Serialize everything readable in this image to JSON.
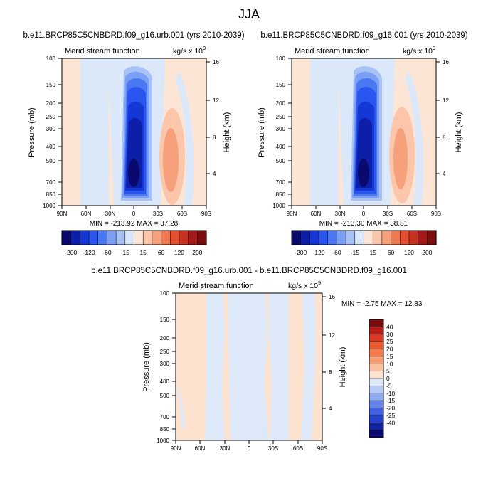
{
  "figure_title": "JJA",
  "chart_data": [
    {
      "type": "heatmap",
      "title": "b.e11.BRCP85C5CNBDRD.f09_g16.urb.001 (yrs 2010-2039)",
      "subtitle_left": "Merid stream function",
      "units": "kg/s x 10",
      "units_exp": "9",
      "ylabel": "Pressure (mb)",
      "ylabel_right": "Height (km)",
      "x_ticks": [
        "90N",
        "60N",
        "30N",
        "0",
        "30S",
        "60S",
        "90S"
      ],
      "y_ticks": [
        "100",
        "150",
        "200",
        "250",
        "300",
        "400",
        "500",
        "700",
        "850",
        "1000"
      ],
      "y_ticks_right": [
        "16",
        "12",
        "8",
        "4"
      ],
      "min_max_text": "MIN = -213.92   MAX = 37.28",
      "min": -213.92,
      "max": 37.28
    },
    {
      "type": "heatmap",
      "title": "b.e11.BRCP85C5CNBDRD.f09_g16.001 (yrs 2010-2039)",
      "subtitle_left": "Merid stream function",
      "units": "kg/s x 10",
      "units_exp": "9",
      "ylabel": "Pressure (mb)",
      "ylabel_right": "Height (km)",
      "x_ticks": [
        "90N",
        "60N",
        "30N",
        "0",
        "30S",
        "60S",
        "90S"
      ],
      "y_ticks": [
        "100",
        "150",
        "200",
        "250",
        "300",
        "400",
        "500",
        "700",
        "850",
        "1000"
      ],
      "y_ticks_right": [
        "16",
        "12",
        "8",
        "4"
      ],
      "min_max_text": "MIN = -213.30   MAX = 38.81",
      "min": -213.3,
      "max": 38.81
    },
    {
      "type": "heatmap",
      "title": "b.e11.BRCP85C5CNBDRD.f09_g16.urb.001 - b.e11.BRCP85C5CNBDRD.f09_g16.001",
      "subtitle_left": "Merid stream function",
      "units": "kg/s x 10",
      "units_exp": "9",
      "ylabel": "Pressure (mb)",
      "ylabel_right": "Height (km)",
      "x_ticks": [
        "90N",
        "60N",
        "30N",
        "0",
        "30S",
        "60S",
        "90S"
      ],
      "y_ticks": [
        "100",
        "150",
        "200",
        "250",
        "300",
        "400",
        "500",
        "700",
        "850",
        "1000"
      ],
      "y_ticks_right": [
        "16",
        "12",
        "8",
        "4"
      ],
      "min_max_text": "MIN = -2.75   MAX = 12.83",
      "min": -2.75,
      "max": 12.83
    }
  ],
  "colorbar_top": {
    "labels": [
      "-200",
      "-120",
      "-60",
      "-15",
      "15",
      "60",
      "120",
      "200"
    ],
    "colors": [
      "#0a0a6e",
      "#0d1fa8",
      "#1437d6",
      "#2a55ee",
      "#4a78f2",
      "#7a9ff4",
      "#a9c2f6",
      "#dbe8fa",
      "#fde5d6",
      "#fbc6aa",
      "#f6a07c",
      "#ef7a52",
      "#e4502f",
      "#c83020",
      "#a51818",
      "#7c0d0d"
    ]
  },
  "colorbar_diff": {
    "labels": [
      "40",
      "30",
      "25",
      "20",
      "15",
      "10",
      "5",
      "0",
      "-5",
      "-10",
      "-15",
      "-20",
      "-25",
      "-40"
    ],
    "colors": [
      "#7c0d0d",
      "#b81d18",
      "#d83a22",
      "#ec5a30",
      "#f47a4a",
      "#f89e72",
      "#fbc0a0",
      "#fde2d0",
      "#dde8f8",
      "#b7cbf4",
      "#8eaaf0",
      "#6585ec",
      "#3f60e4",
      "#2541cc",
      "#12259f",
      "#0a0a6e"
    ]
  }
}
